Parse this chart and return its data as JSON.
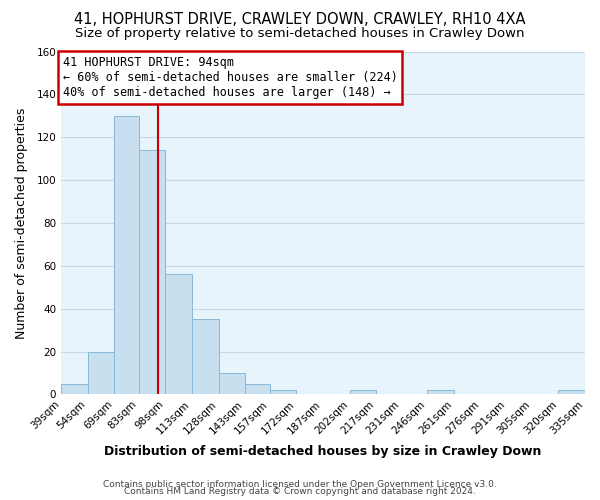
{
  "title": "41, HOPHURST DRIVE, CRAWLEY DOWN, CRAWLEY, RH10 4XA",
  "subtitle": "Size of property relative to semi-detached houses in Crawley Down",
  "xlabel": "Distribution of semi-detached houses by size in Crawley Down",
  "ylabel": "Number of semi-detached properties",
  "bin_edges": [
    39,
    54,
    69,
    83,
    98,
    113,
    128,
    143,
    157,
    172,
    187,
    202,
    217,
    231,
    246,
    261,
    276,
    291,
    305,
    320,
    335
  ],
  "bin_heights": [
    5,
    20,
    130,
    114,
    56,
    35,
    10,
    5,
    2,
    0,
    0,
    2,
    0,
    0,
    2,
    0,
    0,
    0,
    0,
    2
  ],
  "bar_color": "#c8dff0",
  "bar_edge_color": "#88b8d8",
  "property_value": 94,
  "vline_color": "#cc0000",
  "annotation_box_edge_color": "#cc0000",
  "annotation_title": "41 HOPHURST DRIVE: 94sqm",
  "annotation_line1": "← 60% of semi-detached houses are smaller (224)",
  "annotation_line2": "40% of semi-detached houses are larger (148) →",
  "ylim": [
    0,
    160
  ],
  "yticks": [
    0,
    20,
    40,
    60,
    80,
    100,
    120,
    140,
    160
  ],
  "tick_labels": [
    "39sqm",
    "54sqm",
    "69sqm",
    "83sqm",
    "98sqm",
    "113sqm",
    "128sqm",
    "143sqm",
    "157sqm",
    "172sqm",
    "187sqm",
    "202sqm",
    "217sqm",
    "231sqm",
    "246sqm",
    "261sqm",
    "276sqm",
    "291sqm",
    "305sqm",
    "320sqm",
    "335sqm"
  ],
  "footer1": "Contains HM Land Registry data © Crown copyright and database right 2024.",
  "footer2": "Contains public sector information licensed under the Open Government Licence v3.0.",
  "background_color": "#ffffff",
  "plot_bg_color": "#e8f4fb",
  "grid_color": "#c5d8e8",
  "title_fontsize": 10.5,
  "subtitle_fontsize": 9.5,
  "annotation_fontsize": 8.5,
  "axis_label_fontsize": 9,
  "tick_fontsize": 7.5,
  "footer_fontsize": 6.5
}
